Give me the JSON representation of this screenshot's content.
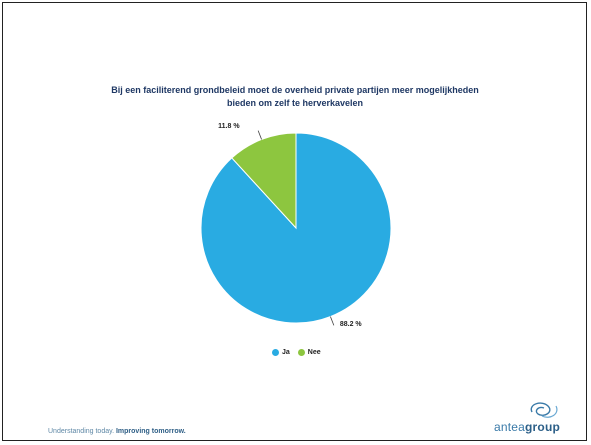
{
  "slide": {
    "tagline_light": "Understanding today.",
    "tagline_strong": "Improving tomorrow."
  },
  "logo": {
    "icon": "antea-swirl-logo",
    "text_a": "antea",
    "text_b": "group"
  },
  "chart_data": {
    "type": "pie",
    "title": "Bij een faciliterend grondbeleid moet de overheid private partijen meer mogelijkheden bieden om zelf te herverkavelen",
    "categories": [
      "Ja",
      "Nee"
    ],
    "values": [
      88.2,
      11.8
    ],
    "value_labels": [
      "88.2 %",
      "11.8 %"
    ],
    "colors": [
      "#29abe2",
      "#8dc63f"
    ],
    "legend_position": "bottom"
  }
}
